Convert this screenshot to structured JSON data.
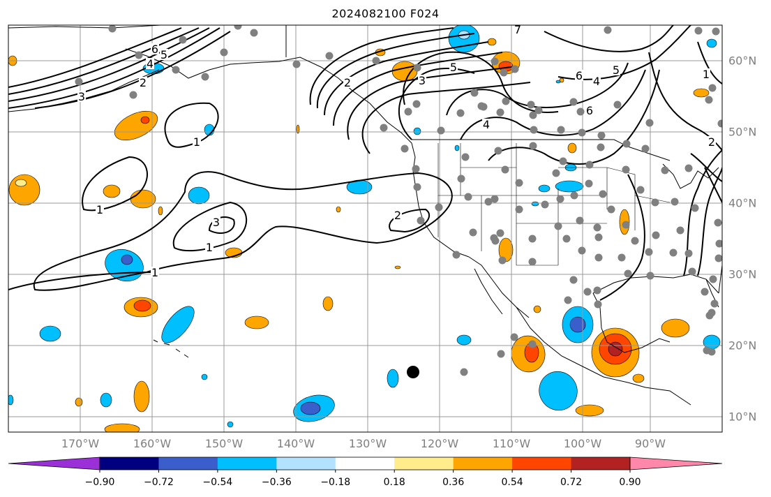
{
  "title": "2024082100 F024",
  "map": {
    "longitude_labels": [
      "170°W",
      "160°W",
      "150°W",
      "140°W",
      "130°W",
      "120°W",
      "110°W",
      "100°W",
      "90°W"
    ],
    "latitude_labels": [
      "60°N",
      "50°N",
      "40°N",
      "30°N",
      "20°N",
      "10°N"
    ],
    "contour_labels": [
      "6",
      "5",
      "4",
      "3",
      "2",
      "1",
      "1",
      "1",
      "2",
      "3",
      "1",
      "2",
      "3",
      "5",
      "4",
      "6",
      "5",
      "4",
      "6",
      "1",
      "7",
      "2"
    ],
    "colors": {
      "grid": "#999999",
      "coast": "#000000",
      "contour": "#000000",
      "station": "#808080",
      "marker": "#000000"
    }
  },
  "colorbar": {
    "tick_labels": [
      "−0.90",
      "−0.72",
      "−0.54",
      "−0.36",
      "−0.18",
      "0.18",
      "0.36",
      "0.54",
      "0.72",
      "0.90"
    ],
    "colors": [
      "#9b30d9",
      "#000080",
      "#3a5fcd",
      "#00bfff",
      "#b2e2ff",
      "#ffffff",
      "#ffec8b",
      "#ffa500",
      "#ff4500",
      "#b22222",
      "#ff88aa"
    ]
  }
}
